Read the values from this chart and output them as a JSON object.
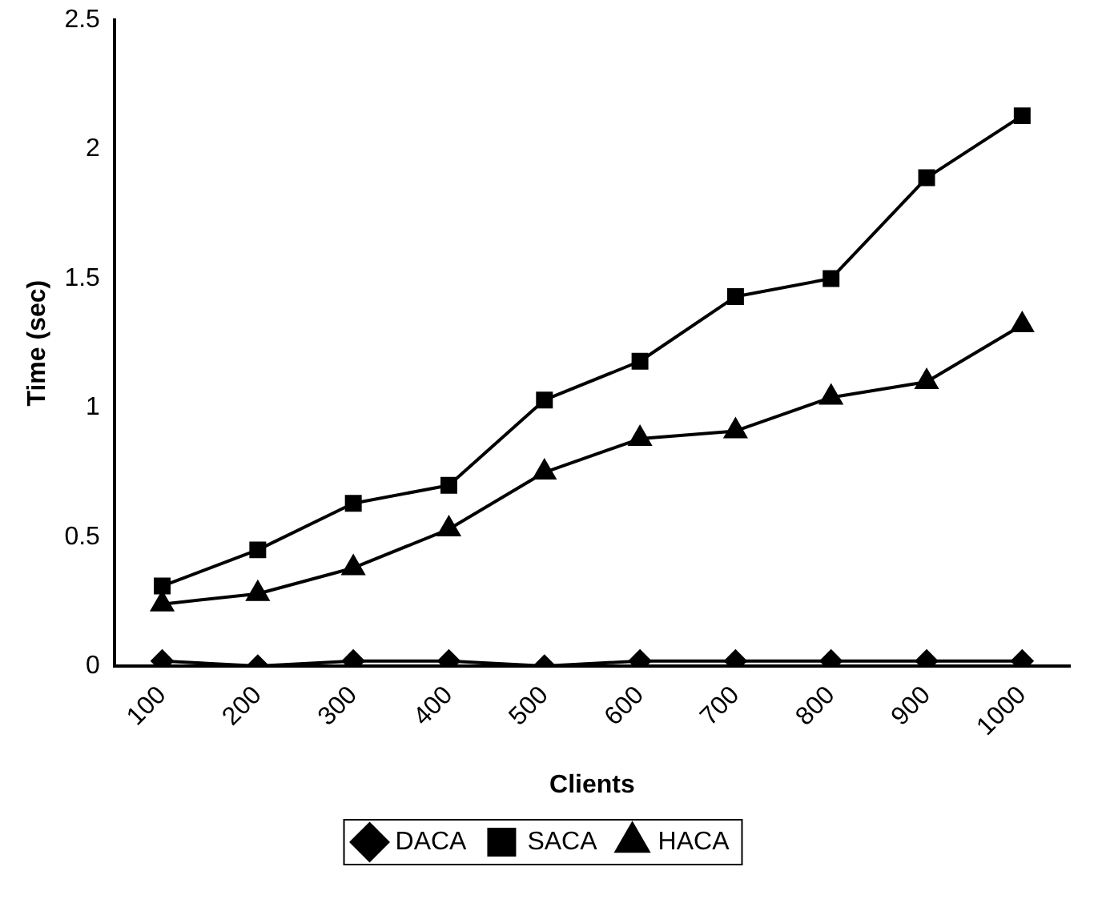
{
  "chart_data": {
    "type": "line",
    "xlabel": "Clients",
    "ylabel": "Time (sec)",
    "categories": [
      "100",
      "200",
      "300",
      "400",
      "500",
      "600",
      "700",
      "800",
      "900",
      "1000"
    ],
    "series": [
      {
        "name": "DACA",
        "color": "#000000",
        "marker": "diamond",
        "values": [
          0.02,
          0,
          0.02,
          0.02,
          0,
          0.02,
          0.02,
          0.02,
          0.02,
          0.02
        ]
      },
      {
        "name": "SACA",
        "color": "#000000",
        "marker": "square",
        "values": [
          0.31,
          0.45,
          0.63,
          0.7,
          1.03,
          1.18,
          1.43,
          1.5,
          1.89,
          2.13
        ]
      },
      {
        "name": "HACA",
        "color": "#000000",
        "marker": "triangle",
        "values": [
          0.24,
          0.28,
          0.38,
          0.53,
          0.75,
          0.88,
          0.91,
          1.04,
          1.1,
          1.32
        ]
      }
    ],
    "ylim": [
      0,
      2.5
    ],
    "yticks": [
      0,
      0.5,
      1,
      1.5,
      2,
      2.5
    ],
    "grid": false,
    "legend": "bottom"
  }
}
